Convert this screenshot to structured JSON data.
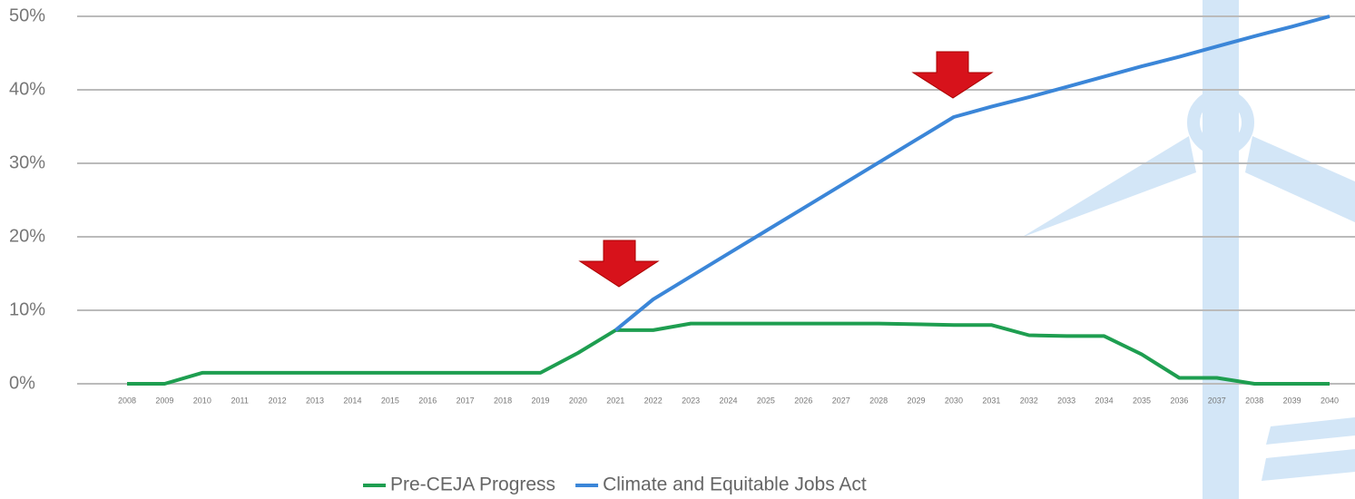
{
  "chart_data": {
    "type": "line",
    "categories": [
      "2008",
      "2009",
      "2010",
      "2011",
      "2012",
      "2013",
      "2014",
      "2015",
      "2016",
      "2017",
      "2018",
      "2019",
      "2020",
      "2021",
      "2022",
      "2023",
      "2024",
      "2025",
      "2026",
      "2027",
      "2028",
      "2029",
      "2030",
      "2031",
      "2032",
      "2033",
      "2034",
      "2035",
      "2036",
      "2037",
      "2038",
      "2039",
      "2040"
    ],
    "series": [
      {
        "name": "Pre-CEJA Progress",
        "color": "#1e9e50",
        "values": [
          0,
          0,
          1.5,
          1.5,
          1.5,
          1.5,
          1.5,
          1.5,
          1.5,
          1.5,
          1.5,
          1.5,
          4.2,
          7.3,
          7.3,
          8.2,
          8.2,
          8.2,
          8.2,
          8.2,
          8.2,
          8.1,
          8.0,
          8.0,
          6.6,
          6.5,
          6.5,
          4.0,
          0.8,
          0.8,
          0,
          0,
          0
        ]
      },
      {
        "name": "Climate and Equitable Jobs Act",
        "color": "#3b86d8",
        "values": [
          null,
          null,
          null,
          null,
          null,
          null,
          null,
          null,
          null,
          null,
          null,
          null,
          null,
          7.3,
          11.5,
          14.6,
          17.7,
          20.8,
          23.9,
          27.0,
          30.1,
          33.2,
          36.3,
          37.7,
          39.0,
          40.4,
          41.8,
          43.2,
          44.5,
          45.9,
          47.3,
          48.6,
          50
        ]
      }
    ],
    "ylim": [
      0,
      50
    ],
    "yticks": [
      {
        "value": 0,
        "label": "0%"
      },
      {
        "value": 10,
        "label": "10%"
      },
      {
        "value": 20,
        "label": "20%"
      },
      {
        "value": 30,
        "label": "30%"
      },
      {
        "value": 40,
        "label": "40%"
      },
      {
        "value": 50,
        "label": "50%"
      }
    ],
    "grid": true,
    "legend": "bottom"
  }
}
